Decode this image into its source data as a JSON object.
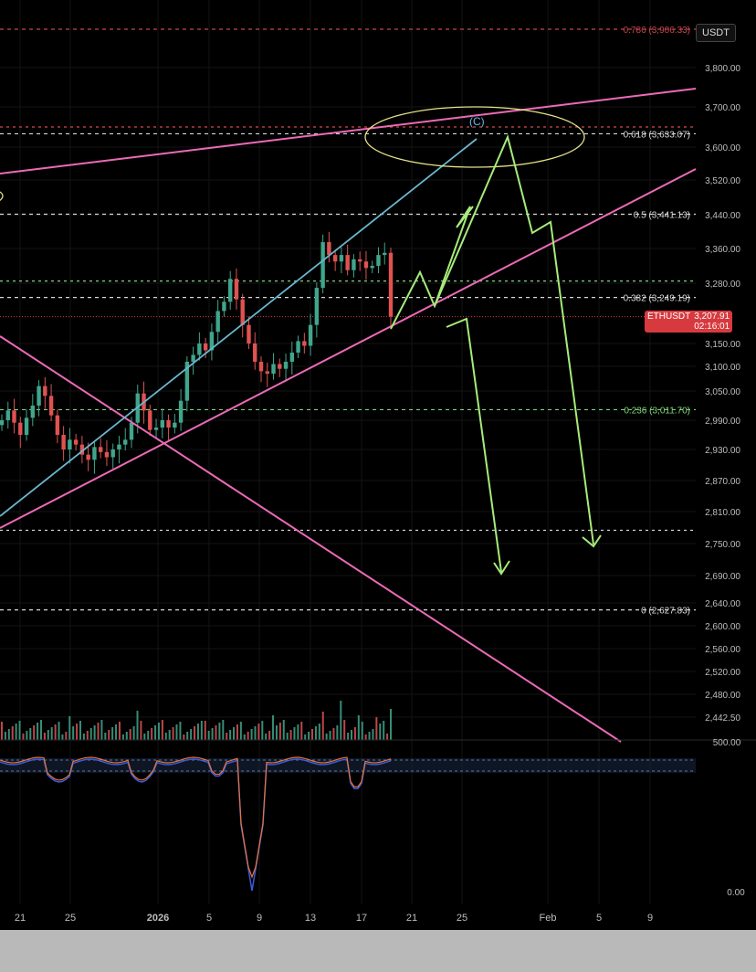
{
  "chart_data": {
    "type": "candlestick",
    "symbol": "ETHUSDT",
    "currency_label": "USDT",
    "last_price": "3,207.91",
    "countdown": "02:16:01",
    "price_axis": {
      "labels": [
        "3,800.00",
        "3,700.00",
        "3,600.00",
        "3,520.00",
        "3,440.00",
        "3,360.00",
        "3,280.00",
        "3,150.00",
        "3,100.00",
        "3,050.00",
        "2,990.00",
        "2,930.00",
        "2,870.00",
        "2,810.00",
        "2,750.00",
        "2,690.00",
        "2,640.00",
        "2,600.00",
        "2,560.00",
        "2,520.00",
        "2,480.00",
        "2,442.50"
      ],
      "range": [
        2440,
        3920
      ]
    },
    "fib_levels": [
      {
        "label": "0.786 (3,906.33)",
        "value": 3906.33,
        "color": "#c8464a"
      },
      {
        "label": "0.618 (3,633.07)",
        "value": 3633.07,
        "color": "#d9d9d9"
      },
      {
        "label": "0.5 (3,441.13)",
        "value": 3441.13,
        "color": "#d9d9d9"
      },
      {
        "label": "0.382 (3,249.19)",
        "value": 3249.19,
        "color": "#d9d9d9"
      },
      {
        "label": "0.236 (3,011.70)",
        "value": 3011.7,
        "color": "#7fd37a"
      },
      {
        "label": "0 (2,627.83)",
        "value": 2627.83,
        "color": "#d9d9d9"
      }
    ],
    "extra_levels": [
      {
        "value": 3285,
        "color": "#7fd37a"
      },
      {
        "value": 2775,
        "color": "#d9d9d9"
      },
      {
        "value": 3650,
        "color": "#d84a4a"
      }
    ],
    "annotation": "(C)",
    "x_axis": {
      "labels": [
        "21",
        "25",
        "2026",
        "5",
        "9",
        "13",
        "17",
        "21",
        "25",
        "Feb",
        "5",
        "9"
      ]
    },
    "closes": [
      2990,
      3010,
      2985,
      2960,
      2995,
      3020,
      3060,
      3040,
      3000,
      2960,
      2930,
      2950,
      2940,
      2920,
      2910,
      2935,
      2925,
      2915,
      2930,
      2940,
      2950,
      2985,
      3045,
      3010,
      2970,
      2975,
      2990,
      2975,
      2985,
      3030,
      3110,
      3125,
      3150,
      3135,
      3175,
      3220,
      3240,
      3290,
      3245,
      3190,
      3150,
      3110,
      3090,
      3085,
      3105,
      3095,
      3110,
      3130,
      3155,
      3145,
      3190,
      3270,
      3375,
      3345,
      3330,
      3345,
      3310,
      3335,
      3330,
      3315,
      3320,
      3345,
      3350,
      3207.91
    ],
    "volume_axis_label": "500.00",
    "oscillator_axis_label": "0.00"
  }
}
